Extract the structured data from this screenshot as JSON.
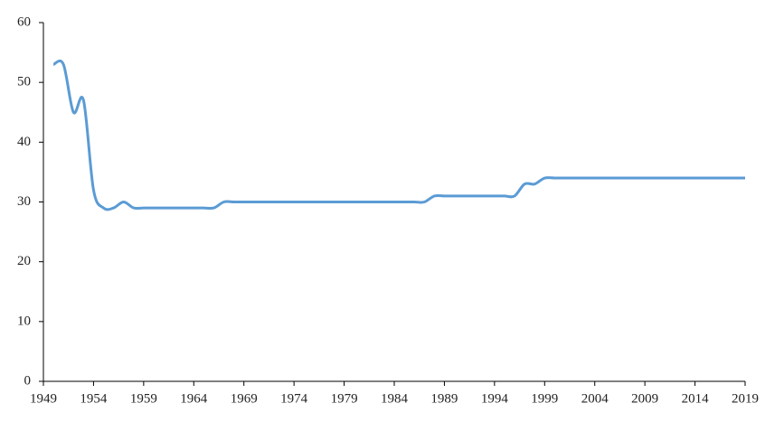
{
  "chart_data": {
    "type": "line",
    "x": [
      1950,
      1951,
      1952,
      1953,
      1954,
      1955,
      1956,
      1957,
      1958,
      1959,
      1960,
      1961,
      1962,
      1963,
      1964,
      1965,
      1966,
      1967,
      1968,
      1969,
      1970,
      1971,
      1972,
      1973,
      1974,
      1975,
      1976,
      1977,
      1978,
      1979,
      1980,
      1981,
      1982,
      1983,
      1984,
      1985,
      1986,
      1987,
      1988,
      1989,
      1990,
      1991,
      1992,
      1993,
      1994,
      1995,
      1996,
      1997,
      1998,
      1999,
      2000,
      2001,
      2002,
      2003,
      2004,
      2005,
      2006,
      2007,
      2008,
      2009,
      2010,
      2011,
      2012,
      2013,
      2014,
      2015,
      2016,
      2017,
      2018,
      2019
    ],
    "series": [
      {
        "color": "#5b9bd5",
        "values": [
          53,
          53,
          45,
          47,
          32,
          29,
          29,
          30,
          29,
          29,
          29,
          29,
          29,
          29,
          29,
          29,
          29,
          30,
          30,
          30,
          30,
          30,
          30,
          30,
          30,
          30,
          30,
          30,
          30,
          30,
          30,
          30,
          30,
          30,
          30,
          30,
          30,
          30,
          31,
          31,
          31,
          31,
          31,
          31,
          31,
          31,
          31,
          33,
          33,
          34,
          34,
          34,
          34,
          34,
          34,
          34,
          34,
          34,
          34,
          34,
          34,
          34,
          34,
          34,
          34,
          34,
          34,
          34,
          34,
          34
        ]
      }
    ],
    "xlim": [
      1949,
      2019
    ],
    "xticks": [
      1949,
      1954,
      1959,
      1964,
      1969,
      1974,
      1979,
      1984,
      1989,
      1994,
      1999,
      2004,
      2009,
      2014,
      2019
    ],
    "ylim": [
      0,
      60
    ],
    "yticks": [
      0,
      10,
      20,
      30,
      40,
      50,
      60
    ],
    "grid": false
  }
}
